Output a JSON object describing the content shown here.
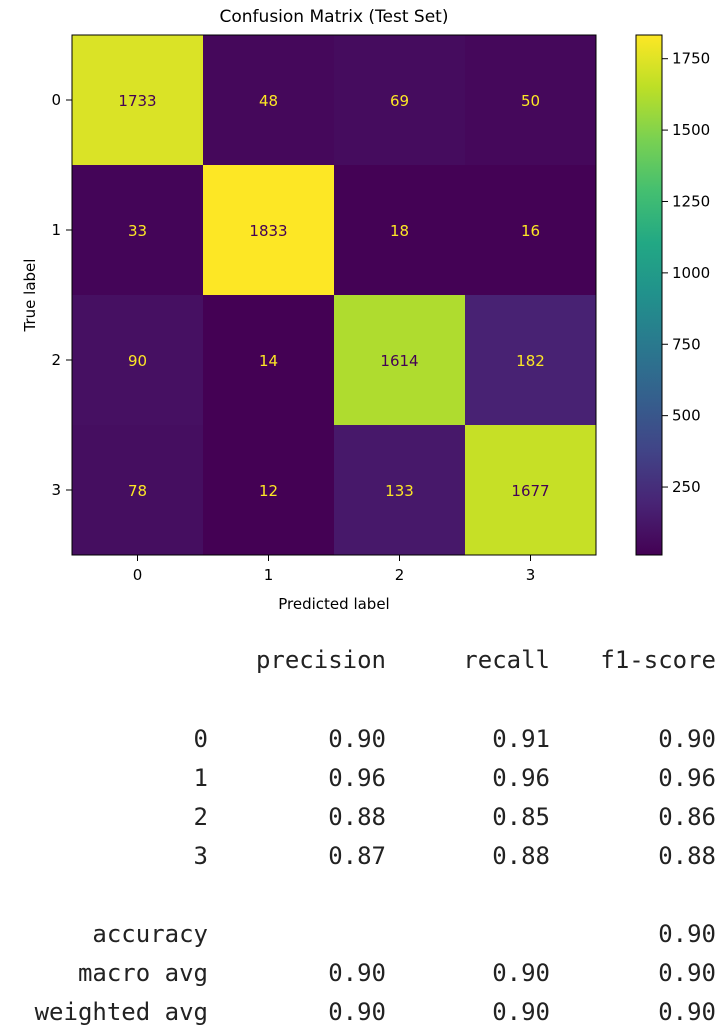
{
  "chart_data": {
    "type": "heatmap",
    "title": "Confusion Matrix (Test Set)",
    "xlabel": "Predicted label",
    "ylabel": "True label",
    "x_categories": [
      "0",
      "1",
      "2",
      "3"
    ],
    "y_categories": [
      "0",
      "1",
      "2",
      "3"
    ],
    "values": [
      [
        1733,
        48,
        69,
        50
      ],
      [
        33,
        1833,
        18,
        16
      ],
      [
        90,
        14,
        1614,
        182
      ],
      [
        78,
        12,
        133,
        1677
      ]
    ],
    "colormap": "viridis",
    "color_range": [
      12,
      1833
    ],
    "colorbar_ticks": [
      "250",
      "500",
      "750",
      "1000",
      "1250",
      "1500",
      "1750"
    ],
    "colorbar_values": [
      250,
      500,
      750,
      1000,
      1250,
      1500,
      1750
    ],
    "grid": false
  },
  "report": {
    "headers": [
      "precision",
      "recall",
      "f1-score"
    ],
    "rows": [
      {
        "label": "0",
        "precision": "0.90",
        "recall": "0.91",
        "f1": "0.90"
      },
      {
        "label": "1",
        "precision": "0.96",
        "recall": "0.96",
        "f1": "0.96"
      },
      {
        "label": "2",
        "precision": "0.88",
        "recall": "0.85",
        "f1": "0.86"
      },
      {
        "label": "3",
        "precision": "0.87",
        "recall": "0.88",
        "f1": "0.88"
      }
    ],
    "summary": [
      {
        "label": "accuracy",
        "precision": "",
        "recall": "",
        "f1": "0.90"
      },
      {
        "label": "macro avg",
        "precision": "0.90",
        "recall": "0.90",
        "f1": "0.90"
      },
      {
        "label": "weighted avg",
        "precision": "0.90",
        "recall": "0.90",
        "f1": "0.90"
      }
    ]
  }
}
